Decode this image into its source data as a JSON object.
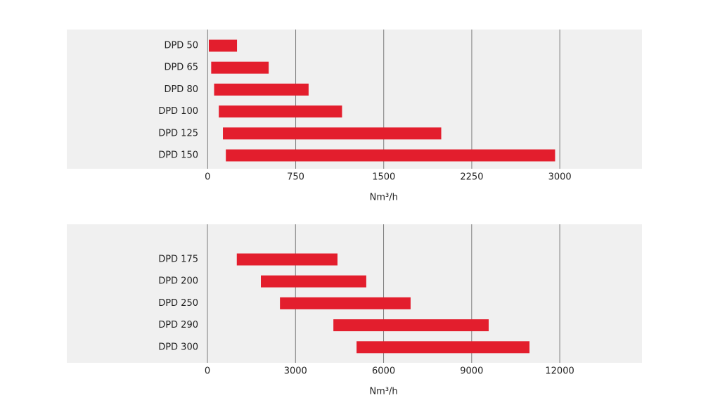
{
  "chart_data": [
    {
      "type": "bar",
      "orientation": "horizontal",
      "floating": true,
      "categories": [
        "DPD 50",
        "DPD 65",
        "DPD 80",
        "DPD 100",
        "DPD 125",
        "DPD 150"
      ],
      "values": [
        [
          10,
          250
        ],
        [
          30,
          520
        ],
        [
          55,
          860
        ],
        [
          95,
          1145
        ],
        [
          130,
          1990
        ],
        [
          155,
          2960
        ]
      ],
      "color": "#e31e2d",
      "xlim": [
        -1200,
        3700
      ],
      "xticks": [
        0,
        750,
        1500,
        2250,
        3000
      ],
      "xlabel": "Nm³/h",
      "grid": true
    },
    {
      "type": "bar",
      "orientation": "horizontal",
      "floating": true,
      "categories": [
        "DPD 175",
        "DPD 200",
        "DPD 250",
        "DPD 290",
        "DPD 300"
      ],
      "values": [
        [
          1000,
          4430
        ],
        [
          1820,
          5410
        ],
        [
          2470,
          6920
        ],
        [
          4290,
          9580
        ],
        [
          5080,
          10970
        ]
      ],
      "color": "#e31e2d",
      "xlim": [
        -4790,
        14800
      ],
      "xticks": [
        0,
        3000,
        6000,
        9000,
        12000
      ],
      "xlabel": "Nm³/h",
      "grid": true
    }
  ]
}
